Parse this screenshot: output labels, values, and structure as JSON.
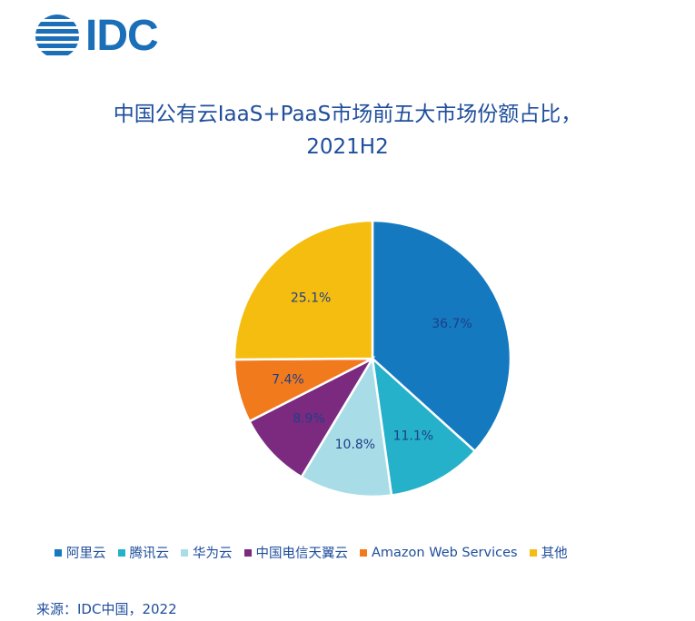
{
  "logo": {
    "text": "IDC"
  },
  "chart_data": {
    "type": "pie",
    "title": "中国公有云IaaS+PaaS市场前五大市场份额占比，",
    "subtitle": "2021H2",
    "categories": [
      "阿里云",
      "腾讯云",
      "华为云",
      "中国电信天翼云",
      "Amazon Web Services",
      "其他"
    ],
    "values": [
      36.7,
      11.1,
      10.8,
      8.9,
      7.4,
      25.1
    ],
    "data_labels": [
      "36.7%",
      "11.1%",
      "10.8%",
      "8.9%",
      "7.4%",
      "25.1%"
    ],
    "colors": [
      "#1479bf",
      "#25b1c9",
      "#a8dde8",
      "#7b2a7f",
      "#f07a1c",
      "#f5bd0f"
    ],
    "legend_position": "bottom"
  },
  "source": "来源：IDC中国，2022"
}
